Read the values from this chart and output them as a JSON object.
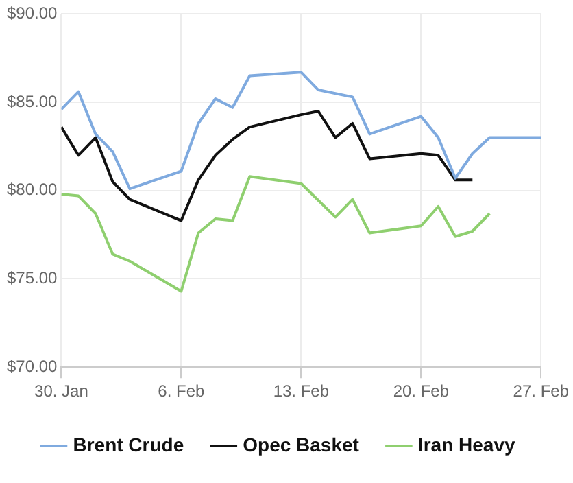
{
  "chart_data": {
    "type": "line",
    "xlim": [
      "--01-30",
      "--02-27"
    ],
    "xticks": [
      {
        "value": "--01-30",
        "label": "30. Jan"
      },
      {
        "value": "--02-06",
        "label": "6. Feb"
      },
      {
        "value": "--02-13",
        "label": "13. Feb"
      },
      {
        "value": "--02-20",
        "label": "20. Feb"
      },
      {
        "value": "--02-27",
        "label": "27. Feb"
      }
    ],
    "ylim": [
      70,
      90
    ],
    "yticks": [
      {
        "value": 70,
        "label": "$70.00"
      },
      {
        "value": 75,
        "label": "$75.00"
      },
      {
        "value": 80,
        "label": "$80.00"
      },
      {
        "value": 85,
        "label": "$85.00"
      },
      {
        "value": 90,
        "label": "$90.00"
      }
    ],
    "grid": true,
    "legend": "bottom",
    "marker": "none",
    "line_style": "solid",
    "series": [
      {
        "name": "Brent Crude",
        "color": "#7faadf",
        "x": [
          "--01-30",
          "--01-31",
          "--02-01",
          "--02-02",
          "--02-03",
          "--02-06",
          "--02-07",
          "--02-08",
          "--02-09",
          "--02-10",
          "--02-13",
          "--02-14",
          "--02-16",
          "--02-17",
          "--02-20",
          "--02-21",
          "--02-22",
          "--02-23",
          "--02-24",
          "--02-27"
        ],
        "values": [
          84.6,
          85.6,
          83.2,
          82.2,
          80.1,
          81.1,
          83.8,
          85.2,
          84.7,
          86.5,
          86.7,
          85.7,
          85.3,
          83.2,
          84.2,
          83.0,
          80.7,
          82.1,
          83.0,
          83.0
        ]
      },
      {
        "name": "Opec Basket",
        "color": "#111111",
        "x": [
          "--01-30",
          "--01-31",
          "--02-01",
          "--02-02",
          "--02-03",
          "--02-06",
          "--02-07",
          "--02-08",
          "--02-09",
          "--02-10",
          "--02-13",
          "--02-14",
          "--02-15",
          "--02-16",
          "--02-17",
          "--02-20",
          "--02-21",
          "--02-22",
          "--02-23"
        ],
        "values": [
          83.6,
          82.0,
          83.0,
          80.5,
          79.5,
          78.3,
          80.6,
          82.0,
          82.9,
          83.6,
          84.3,
          84.5,
          83.0,
          83.8,
          81.8,
          82.1,
          82.0,
          80.6,
          80.6
        ]
      },
      {
        "name": "Iran Heavy",
        "color": "#8fcf6f",
        "x": [
          "--01-30",
          "--01-31",
          "--02-01",
          "--02-02",
          "--02-03",
          "--02-06",
          "--02-07",
          "--02-08",
          "--02-09",
          "--02-10",
          "--02-13",
          "--02-15",
          "--02-16",
          "--02-17",
          "--02-20",
          "--02-21",
          "--02-22",
          "--02-23",
          "--02-24"
        ],
        "values": [
          79.8,
          79.7,
          78.7,
          76.4,
          76.0,
          74.3,
          77.6,
          78.4,
          78.3,
          80.8,
          80.4,
          78.5,
          79.5,
          77.6,
          78.0,
          79.1,
          77.4,
          77.7,
          78.7
        ]
      }
    ]
  }
}
